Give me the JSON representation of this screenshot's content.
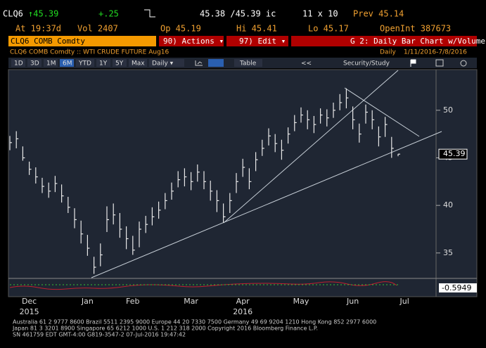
{
  "header": {
    "ticker": "CLQ6",
    "last": "↑45.39",
    "change": "+.25",
    "bid_ask": "45.38 /45.39 ic",
    "size": "11 x 10",
    "prev": "Prev 45.14",
    "time": "At 19:37d",
    "volume": "Vol 2407",
    "open": "Op 45.19",
    "high": "Hi 45.41",
    "low": "Lo 45.17",
    "open_interest": "OpenInt 387673"
  },
  "toolbar": {
    "security": "CLQ6 COMB Comdty",
    "actions": "90) Actions ▾",
    "edit": "97) Edit ▾",
    "chart_title": "G 2: Daily Bar Chart w/Volume",
    "description": "CLQ6 COMB Comdty :: WTI CRUDE FUTURE Aug16",
    "period": "Daily",
    "range": "1/11/2016-7/8/2016",
    "buttons": [
      "1D",
      "3D",
      "1M",
      "6M",
      "YTD",
      "1Y",
      "5Y",
      "Max",
      "Daily ▾"
    ],
    "table": "Table",
    "nav": "<<",
    "security_study": "Security/Study"
  },
  "chart_data": {
    "type": "ohlc",
    "color": "#e8e8e8",
    "categories": [
      null,
      null,
      null,
      "Dec",
      null,
      null,
      null,
      null,
      null,
      null,
      null,
      null,
      "Jan",
      null,
      null,
      null,
      null,
      null,
      null,
      "Feb",
      null,
      null,
      null,
      null,
      null,
      null,
      null,
      null,
      "Mar",
      null,
      null,
      null,
      null,
      null,
      null,
      null,
      "Apr",
      null,
      null,
      null,
      null,
      null,
      null,
      null,
      null,
      "May",
      null,
      null,
      null,
      null,
      null,
      null,
      null,
      "Jun",
      null,
      null,
      null,
      null,
      null,
      null,
      null,
      "Jul",
      null,
      null
    ],
    "year_labels": [
      null,
      null,
      null,
      "2015",
      null,
      null,
      null,
      null,
      null,
      null,
      null,
      null,
      null,
      null,
      null,
      null,
      null,
      null,
      null,
      null,
      null,
      null,
      null,
      null,
      null,
      null,
      null,
      null,
      null,
      null,
      null,
      null,
      null,
      null,
      null,
      null,
      "2016",
      null,
      null,
      null,
      null,
      null,
      null,
      null,
      null,
      null,
      null,
      null,
      null,
      null,
      null,
      null,
      null,
      null,
      null,
      null,
      null,
      null,
      null,
      null,
      null,
      null,
      null,
      null
    ],
    "high": [
      47.3,
      47.8,
      46.2,
      44.6,
      44.0,
      42.9,
      42.4,
      43.1,
      42.2,
      40.9,
      39.7,
      38.4,
      36.9,
      34.6,
      36.0,
      39.9,
      40.2,
      39.2,
      37.8,
      36.8,
      38.3,
      38.9,
      39.8,
      40.4,
      41.3,
      42.4,
      43.6,
      43.9,
      43.5,
      44.3,
      43.6,
      42.6,
      41.6,
      40.2,
      41.3,
      43.4,
      44.9,
      43.9,
      45.6,
      46.9,
      48.1,
      47.5,
      46.9,
      48.2,
      49.5,
      50.3,
      50.0,
      49.4,
      50.2,
      50.1,
      50.8,
      51.7,
      52.3,
      50.4,
      48.6,
      50.6,
      50.0,
      48.3,
      49.3,
      47.2,
      45.41,
      null,
      null,
      null
    ],
    "low": [
      45.8,
      46.0,
      44.7,
      43.2,
      42.3,
      41.3,
      40.8,
      41.4,
      40.3,
      39.2,
      37.6,
      36.0,
      34.7,
      32.8,
      33.6,
      37.2,
      38.0,
      36.6,
      35.4,
      34.8,
      35.6,
      37.1,
      37.9,
      38.6,
      39.6,
      40.6,
      41.9,
      42.0,
      41.6,
      42.5,
      41.7,
      40.5,
      39.3,
      38.2,
      39.2,
      41.3,
      43.0,
      41.7,
      43.6,
      45.2,
      46.3,
      45.6,
      44.8,
      46.5,
      47.8,
      48.7,
      48.0,
      47.6,
      48.6,
      48.3,
      49.2,
      50.0,
      50.2,
      48.0,
      46.6,
      48.6,
      48.0,
      46.2,
      47.2,
      45.0,
      45.17,
      null,
      null,
      null
    ],
    "close": [
      46.6,
      47.0,
      45.0,
      43.8,
      43.0,
      42.0,
      41.5,
      42.3,
      41.0,
      39.8,
      38.5,
      37.0,
      35.5,
      33.5,
      34.8,
      38.5,
      39.0,
      37.5,
      36.5,
      35.3,
      37.5,
      38.0,
      38.8,
      39.5,
      40.5,
      41.5,
      42.7,
      43.0,
      42.5,
      43.5,
      42.5,
      41.5,
      40.5,
      38.8,
      40.5,
      42.5,
      44.0,
      42.5,
      44.8,
      46.0,
      47.3,
      46.5,
      45.8,
      47.5,
      48.7,
      49.5,
      49.0,
      48.5,
      49.5,
      49.2,
      50.0,
      50.8,
      51.3,
      49.0,
      47.5,
      49.8,
      49.0,
      47.2,
      48.5,
      46.0,
      45.39,
      null,
      null,
      null
    ],
    "ylim": [
      32.4,
      54.2
    ],
    "yticks": [
      35,
      40,
      45,
      50
    ],
    "last_price": 45.39,
    "indicator_value": -0.5949
  },
  "footer": [
    "Australia 61 2 9777 8600 Brazil 5511 2395 9000 Europe 44 20 7330 7500 Germany 49 69 9204 1210 Hong Kong 852 2977 6000",
    "Japan 81 3 3201 8900          Singapore 65 6212 1000          U.S. 1 212 318 2000          Copyright 2016 Bloomberg Finance L.P.",
    "SN 461759 EDT  GMT-4:00 G819-3547-2 07-Jul-2016 19:47:42"
  ]
}
